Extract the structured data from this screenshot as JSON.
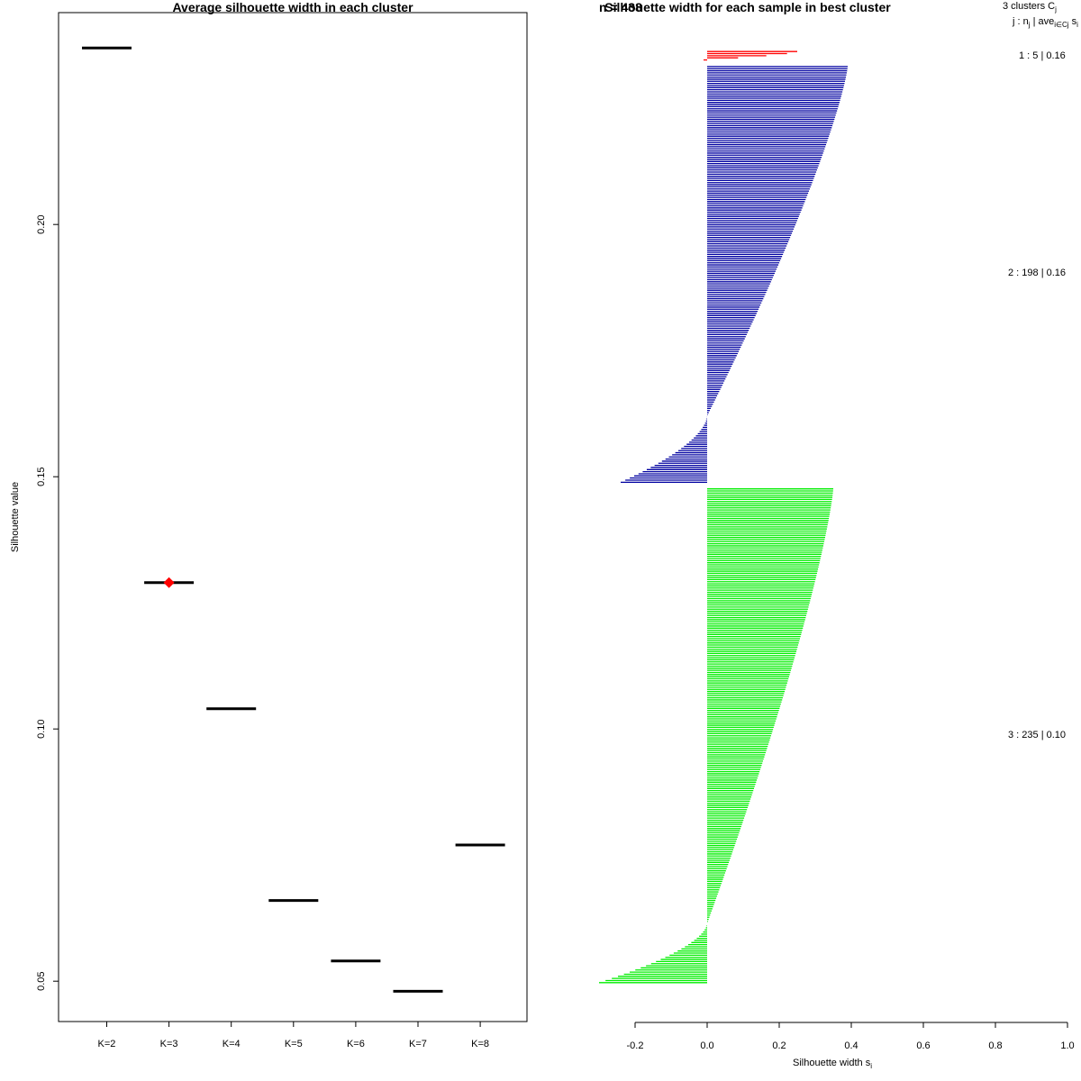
{
  "chart_data": [
    {
      "type": "scatter",
      "title": "Average silhouette width in each cluster",
      "xlabel": "",
      "ylabel": "Silhouette value",
      "categories": [
        "K=2",
        "K=3",
        "K=4",
        "K=5",
        "K=6",
        "K=7",
        "K=8"
      ],
      "values": [
        0.235,
        0.129,
        0.104,
        0.066,
        0.054,
        0.048,
        0.077
      ],
      "best_category": "K=3",
      "best_marker_color": "#ff0000",
      "y_ticks": [
        0.05,
        0.1,
        0.15,
        0.2
      ],
      "y_tick_labels": [
        "0.05",
        "0.10",
        "0.15",
        "0.20"
      ],
      "ylim": [
        0.042,
        0.242
      ],
      "grid": false
    },
    {
      "type": "bar",
      "orientation": "horizontal",
      "title": "Silhouette width for each sample in best cluster",
      "title_overlap_text": "n = 438",
      "xlabel": "Silhouette width s",
      "xlabel_subscript": "i",
      "xlim": [
        -0.2,
        1.0
      ],
      "x_ticks": [
        -0.2,
        0.0,
        0.2,
        0.4,
        0.6,
        0.8,
        1.0
      ],
      "x_tick_labels": [
        "-0.2",
        "0.0",
        "0.2",
        "0.4",
        "0.6",
        "0.8",
        "1.0"
      ],
      "legend_header_1": "3  clusters  C",
      "legend_header_1_sub": "j",
      "legend_header_2_pre": "j :  n",
      "legend_header_2_sub_n": "j",
      "legend_header_2_mid": " | ave",
      "legend_header_2_sub_ave": "i∈Cj",
      "legend_header_2_post": "  s",
      "legend_header_2_sub_s": "i",
      "clusters": [
        {
          "label": "1 :  5  |  0.16",
          "n": 5,
          "avg": 0.16,
          "color": "#ff0000",
          "min": -0.01,
          "max": 0.25
        },
        {
          "label": "2 :  198  |  0.16",
          "n": 198,
          "avg": 0.16,
          "color": "#0000a0",
          "min": -0.24,
          "max": 0.39
        },
        {
          "label": "3 :  235  |  0.10",
          "n": 235,
          "avg": 0.1,
          "color": "#00ee00",
          "min": -0.3,
          "max": 0.35
        }
      ]
    }
  ]
}
